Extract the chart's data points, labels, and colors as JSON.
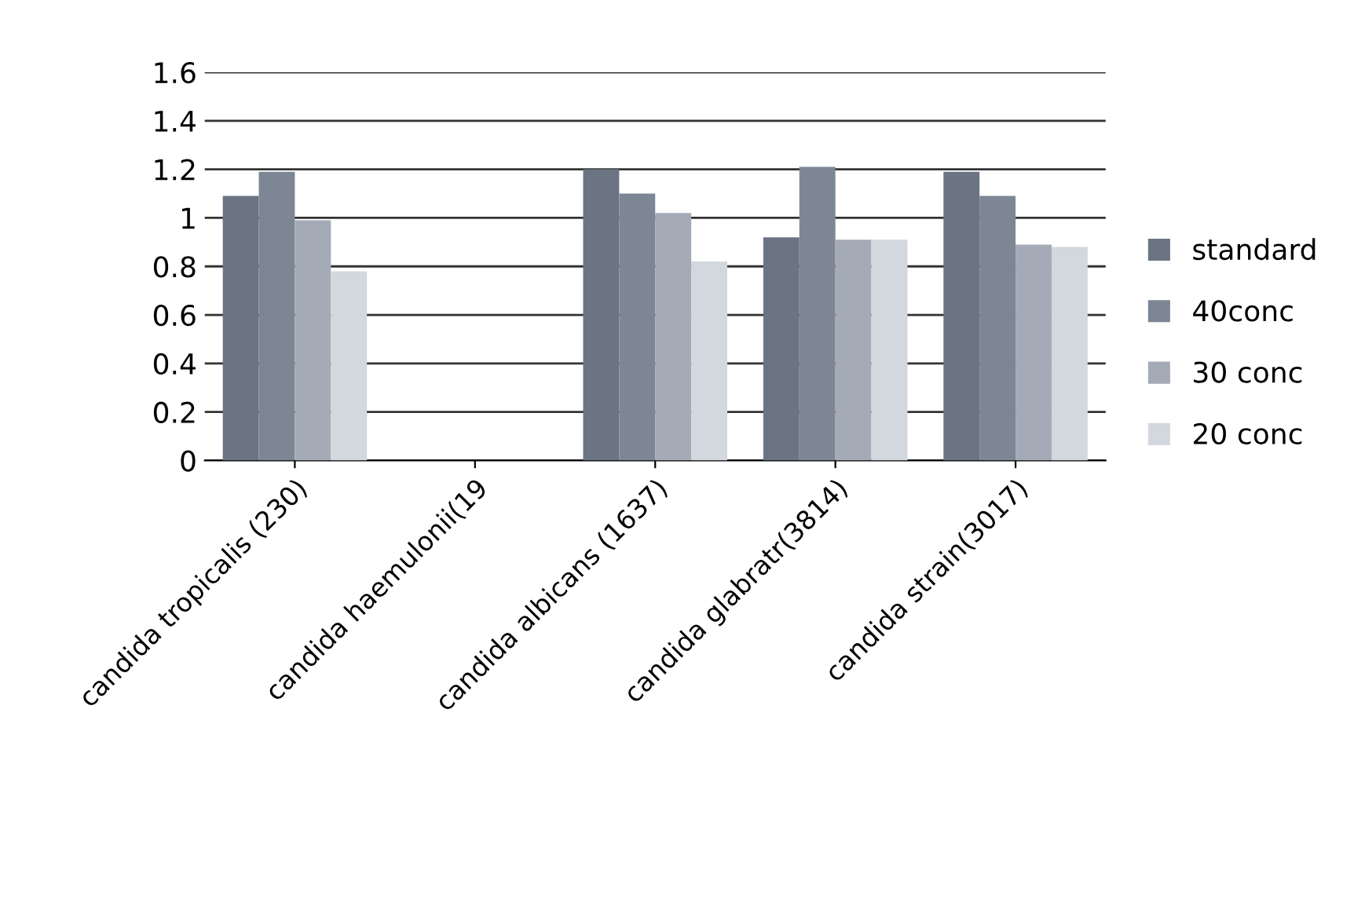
{
  "chart_data": {
    "type": "bar",
    "categories": [
      "candida tropicalis (230)",
      "candida haemulonii(19",
      "candida albicans (1637)",
      "candida glabratr(3814)",
      "candida strain(3017)"
    ],
    "series": [
      {
        "name": "standard",
        "color": "#6b7482",
        "values": [
          1.09,
          null,
          1.2,
          0.92,
          1.19
        ]
      },
      {
        "name": "40conc",
        "color": "#7d8695",
        "values": [
          1.19,
          null,
          1.1,
          1.21,
          1.09
        ]
      },
      {
        "name": "30 conc",
        "color": "#a4abb7",
        "values": [
          0.99,
          null,
          1.02,
          0.91,
          0.89
        ]
      },
      {
        "name": "20 conc",
        "color": "#d3d7de",
        "values": [
          0.78,
          null,
          0.82,
          0.91,
          0.88
        ]
      }
    ],
    "ylim": [
      0,
      1.6
    ],
    "yticks": [
      0,
      0.2,
      0.4,
      0.6,
      0.8,
      1,
      1.2,
      1.4,
      1.6
    ],
    "grid": "y",
    "legend": "right"
  }
}
